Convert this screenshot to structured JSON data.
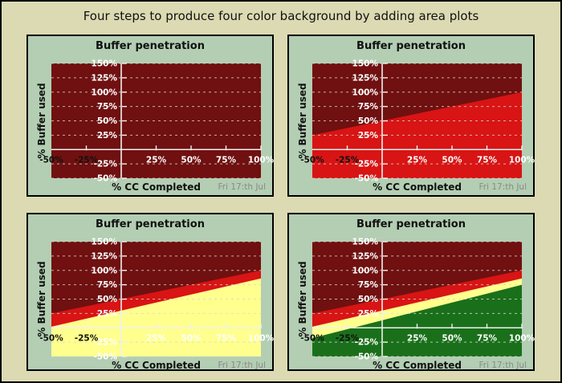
{
  "page": {
    "title": "Four steps to produce four color background by adding area plots"
  },
  "colors": {
    "page_bg": "#dcdab2",
    "frame_border": "#000000",
    "panel_bg": "#b3ceb3",
    "panel_border": "#000000",
    "plot_bg_dark_red": "#701010",
    "zone_red": "#d81414",
    "zone_yellow": "#ffff8e",
    "zone_green": "#1a701a",
    "grid": "#d8d8d8",
    "axis": "#f0f0f0",
    "y_tick_label": "#ffffff",
    "x_tick_label_neg": "#111111",
    "x_tick_label_pos": "#ffffff",
    "title_text": "#111111",
    "date_text": "#8a8a8a"
  },
  "chart_data": [
    {
      "index": 1,
      "type": "area",
      "title": "Buffer penetration",
      "xlabel": "% CC Completed",
      "ylabel": "% Buffer used",
      "date_note": "Fri 17:th Jul",
      "xlim": [
        -50,
        100
      ],
      "ylim": [
        -50,
        150
      ],
      "x_ticks": [
        -50,
        -25,
        25,
        50,
        75,
        100
      ],
      "y_ticks": [
        150,
        125,
        100,
        75,
        50,
        25,
        -25,
        -50
      ],
      "x_tick_marks": [
        -25,
        25,
        50,
        75,
        100
      ],
      "tick_suffix": "%",
      "grid": "horizontal-dashed",
      "background": "#701010",
      "areas": []
    },
    {
      "index": 2,
      "type": "area",
      "title": "Buffer penetration",
      "xlabel": "% CC Completed",
      "ylabel": "% Buffer used",
      "date_note": "Fri 17:th Jul",
      "xlim": [
        -50,
        100
      ],
      "ylim": [
        -50,
        150
      ],
      "x_ticks": [
        -50,
        -25,
        25,
        50,
        75,
        100
      ],
      "y_ticks": [
        150,
        125,
        100,
        75,
        50,
        25,
        -25,
        -50
      ],
      "x_tick_marks": [
        -25,
        25,
        50,
        75,
        100
      ],
      "tick_suffix": "%",
      "grid": "horizontal-dashed",
      "background": "#701010",
      "areas": [
        {
          "name": "red-zone",
          "color": "#d81414",
          "line": [
            [
              -50,
              25
            ],
            [
              100,
              100
            ]
          ]
        }
      ]
    },
    {
      "index": 3,
      "type": "area",
      "title": "Buffer penetration",
      "xlabel": "% CC Completed",
      "ylabel": "% Buffer used",
      "date_note": "Fri 17:th Jul",
      "xlim": [
        -50,
        100
      ],
      "ylim": [
        -50,
        150
      ],
      "x_ticks": [
        -50,
        -25,
        25,
        50,
        75,
        100
      ],
      "y_ticks": [
        150,
        125,
        100,
        75,
        50,
        25,
        -25,
        -50
      ],
      "x_tick_marks": [
        -25,
        25,
        50,
        75,
        100
      ],
      "tick_suffix": "%",
      "grid": "horizontal-dashed",
      "background": "#701010",
      "areas": [
        {
          "name": "red-zone",
          "color": "#d81414",
          "line": [
            [
              -50,
              25
            ],
            [
              100,
              100
            ]
          ]
        },
        {
          "name": "yellow-zone",
          "color": "#ffff8e",
          "line": [
            [
              -50,
              2
            ],
            [
              100,
              86
            ]
          ]
        }
      ]
    },
    {
      "index": 4,
      "type": "area",
      "title": "Buffer penetration",
      "xlabel": "% CC Completed",
      "ylabel": "% Buffer used",
      "date_note": "Fri 17:th Jul",
      "xlim": [
        -50,
        100
      ],
      "ylim": [
        -50,
        150
      ],
      "x_ticks": [
        -50,
        -25,
        25,
        50,
        75,
        100
      ],
      "y_ticks": [
        150,
        125,
        100,
        75,
        50,
        25,
        -25,
        -50
      ],
      "x_tick_marks": [
        -25,
        25,
        50,
        75,
        100
      ],
      "tick_suffix": "%",
      "grid": "horizontal-dashed",
      "background": "#701010",
      "areas": [
        {
          "name": "red-zone",
          "color": "#d81414",
          "line": [
            [
              -50,
              25
            ],
            [
              100,
              100
            ]
          ]
        },
        {
          "name": "yellow-zone",
          "color": "#ffff8e",
          "line": [
            [
              -50,
              2
            ],
            [
              100,
              86
            ]
          ]
        },
        {
          "name": "green-zone",
          "color": "#1a701a",
          "line": [
            [
              -50,
              -18
            ],
            [
              100,
              75
            ]
          ]
        }
      ]
    }
  ]
}
